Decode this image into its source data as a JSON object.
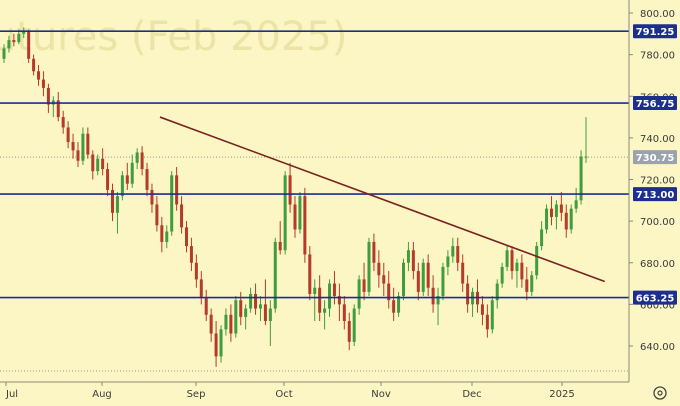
{
  "chart_data": {
    "type": "candlestick",
    "watermark": "Futures (Feb 2025)",
    "x_ticks": [
      "Jul",
      "Aug",
      "Sep",
      "Oct",
      "Nov",
      "Dec",
      "2025"
    ],
    "y_ticks": [
      640,
      660,
      680,
      700,
      720,
      740,
      760,
      780,
      800
    ],
    "ylim": [
      627,
      806
    ],
    "grid": false,
    "horizontal_levels": [
      {
        "value": 791.25,
        "label": "791.25"
      },
      {
        "value": 756.75,
        "label": "756.75"
      },
      {
        "value": 713.0,
        "label": "713.00"
      },
      {
        "value": 663.25,
        "label": "663.25"
      }
    ],
    "last_price": {
      "value": 730.75,
      "label": "730.75"
    },
    "trendline": {
      "start_date": "Aug 20",
      "start_value": 750,
      "end_date": "Jan 15",
      "end_value": 671
    },
    "colors": {
      "up": "#3f9c3f",
      "down": "#b53a2a",
      "levels": "#1c2f8f",
      "trendline": "#7a2222",
      "background": "#fbf6c3"
    },
    "candles": [
      [
        778,
        785,
        776,
        783
      ],
      [
        783,
        789,
        781,
        787
      ],
      [
        787,
        790,
        784,
        786
      ],
      [
        786,
        792,
        785,
        790
      ],
      [
        790,
        793,
        788,
        791
      ],
      [
        791,
        792,
        776,
        778
      ],
      [
        778,
        780,
        770,
        772
      ],
      [
        772,
        775,
        765,
        768
      ],
      [
        768,
        772,
        760,
        764
      ],
      [
        764,
        766,
        752,
        756
      ],
      [
        756,
        760,
        750,
        758
      ],
      [
        758,
        762,
        748,
        750
      ],
      [
        750,
        753,
        742,
        745
      ],
      [
        745,
        748,
        735,
        738
      ],
      [
        738,
        742,
        730,
        734
      ],
      [
        734,
        738,
        726,
        729
      ],
      [
        729,
        745,
        727,
        742
      ],
      [
        742,
        745,
        730,
        732
      ],
      [
        732,
        734,
        720,
        724
      ],
      [
        724,
        732,
        722,
        730
      ],
      [
        730,
        735,
        722,
        725
      ],
      [
        725,
        728,
        712,
        715
      ],
      [
        715,
        718,
        700,
        704
      ],
      [
        704,
        714,
        694,
        712
      ],
      [
        712,
        724,
        710,
        722
      ],
      [
        722,
        728,
        715,
        718
      ],
      [
        718,
        732,
        716,
        728
      ],
      [
        728,
        735,
        725,
        733
      ],
      [
        733,
        736,
        722,
        725
      ],
      [
        725,
        728,
        712,
        715
      ],
      [
        715,
        718,
        704,
        708
      ],
      [
        708,
        712,
        695,
        698
      ],
      [
        698,
        702,
        685,
        690
      ],
      [
        690,
        698,
        687,
        695
      ],
      [
        695,
        724,
        693,
        722
      ],
      [
        722,
        726,
        705,
        708
      ],
      [
        708,
        712,
        694,
        697
      ],
      [
        697,
        700,
        685,
        688
      ],
      [
        688,
        692,
        676,
        680
      ],
      [
        680,
        684,
        668,
        672
      ],
      [
        672,
        676,
        660,
        663
      ],
      [
        663,
        667,
        652,
        655
      ],
      [
        655,
        658,
        642,
        646
      ],
      [
        646,
        652,
        630,
        635
      ],
      [
        635,
        650,
        632,
        648
      ],
      [
        648,
        658,
        645,
        655
      ],
      [
        655,
        660,
        642,
        646
      ],
      [
        646,
        664,
        644,
        662
      ],
      [
        662,
        666,
        650,
        654
      ],
      [
        654,
        660,
        648,
        658
      ],
      [
        658,
        668,
        656,
        665
      ],
      [
        665,
        670,
        655,
        658
      ],
      [
        658,
        664,
        652,
        660
      ],
      [
        660,
        672,
        650,
        652
      ],
      [
        652,
        662,
        640,
        658
      ],
      [
        658,
        692,
        656,
        690
      ],
      [
        690,
        700,
        684,
        686
      ],
      [
        686,
        724,
        684,
        722
      ],
      [
        722,
        728,
        704,
        708
      ],
      [
        708,
        712,
        692,
        696
      ],
      [
        696,
        714,
        694,
        712
      ],
      [
        712,
        716,
        680,
        684
      ],
      [
        684,
        688,
        662,
        665
      ],
      [
        665,
        672,
        652,
        668
      ],
      [
        668,
        674,
        652,
        656
      ],
      [
        656,
        662,
        648,
        658
      ],
      [
        658,
        672,
        654,
        670
      ],
      [
        670,
        676,
        660,
        664
      ],
      [
        664,
        670,
        652,
        660
      ],
      [
        660,
        664,
        648,
        652
      ],
      [
        652,
        656,
        638,
        642
      ],
      [
        642,
        660,
        640,
        658
      ],
      [
        658,
        674,
        655,
        672
      ],
      [
        672,
        680,
        662,
        666
      ],
      [
        666,
        692,
        664,
        690
      ],
      [
        690,
        694,
        676,
        680
      ],
      [
        680,
        686,
        668,
        674
      ],
      [
        674,
        680,
        664,
        670
      ],
      [
        670,
        676,
        658,
        662
      ],
      [
        662,
        668,
        652,
        656
      ],
      [
        656,
        666,
        654,
        664
      ],
      [
        664,
        682,
        662,
        680
      ],
      [
        680,
        690,
        676,
        686
      ],
      [
        686,
        690,
        672,
        676
      ],
      [
        676,
        680,
        662,
        666
      ],
      [
        666,
        682,
        664,
        680
      ],
      [
        680,
        684,
        664,
        668
      ],
      [
        668,
        674,
        656,
        660
      ],
      [
        660,
        668,
        650,
        664
      ],
      [
        664,
        680,
        662,
        678
      ],
      [
        678,
        686,
        674,
        683
      ],
      [
        683,
        692,
        680,
        688
      ],
      [
        688,
        692,
        676,
        680
      ],
      [
        680,
        684,
        666,
        670
      ],
      [
        670,
        674,
        656,
        660
      ],
      [
        660,
        668,
        654,
        666
      ],
      [
        666,
        672,
        656,
        660
      ],
      [
        660,
        664,
        650,
        655
      ],
      [
        655,
        660,
        644,
        648
      ],
      [
        648,
        664,
        646,
        662
      ],
      [
        662,
        672,
        658,
        670
      ],
      [
        670,
        680,
        668,
        678
      ],
      [
        678,
        688,
        676,
        686
      ],
      [
        686,
        688,
        672,
        676
      ],
      [
        676,
        682,
        668,
        680
      ],
      [
        680,
        684,
        668,
        672
      ],
      [
        672,
        678,
        662,
        666
      ],
      [
        666,
        676,
        664,
        674
      ],
      [
        674,
        690,
        672,
        688
      ],
      [
        688,
        700,
        686,
        696
      ],
      [
        696,
        708,
        694,
        706
      ],
      [
        706,
        712,
        698,
        702
      ],
      [
        702,
        710,
        696,
        708
      ],
      [
        708,
        714,
        700,
        704
      ],
      [
        704,
        708,
        692,
        696
      ],
      [
        696,
        708,
        694,
        706
      ],
      [
        706,
        716,
        704,
        710
      ],
      [
        710,
        734,
        708,
        731
      ],
      [
        731,
        750,
        728,
        731
      ]
    ]
  }
}
